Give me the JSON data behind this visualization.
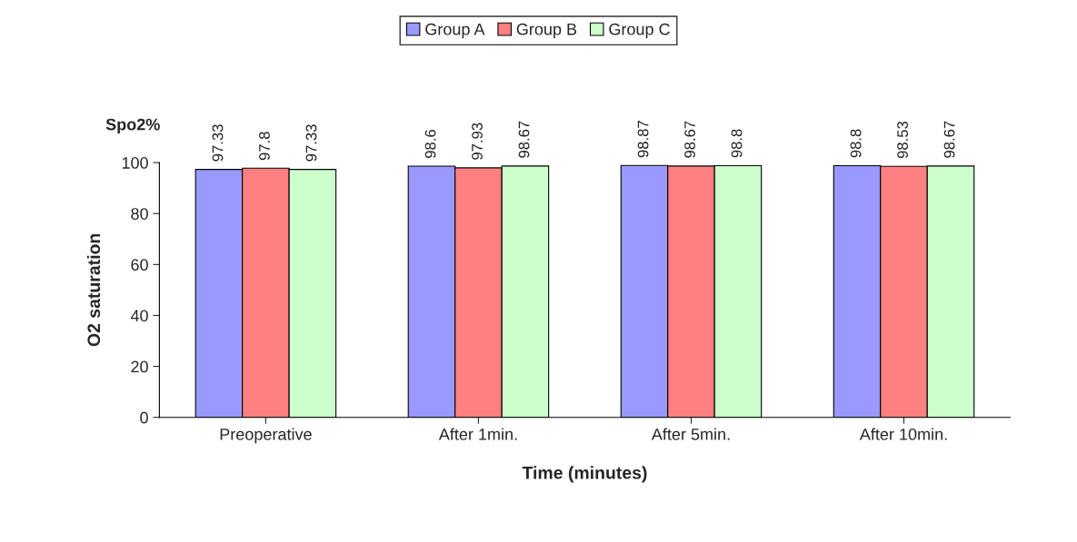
{
  "chart_data": {
    "type": "bar",
    "xlabel": "Time (minutes)",
    "ylabel": "O2 saturation",
    "annotations": [
      "Spo2%"
    ],
    "categories": [
      "Preoperative",
      "After 1min.",
      "After 5min.",
      "After 10min."
    ],
    "series": [
      {
        "name": "Group A",
        "color": "#9999ff",
        "values": [
          97.33,
          98.6,
          98.87,
          98.8
        ]
      },
      {
        "name": "Group B",
        "color": "#ff8080",
        "values": [
          97.8,
          97.93,
          98.67,
          98.53
        ]
      },
      {
        "name": "Group C",
        "color": "#ccffcc",
        "values": [
          97.33,
          98.67,
          98.8,
          98.67
        ]
      }
    ],
    "ylim": [
      0,
      100
    ],
    "yticks": [
      0,
      20,
      40,
      60,
      80,
      100
    ],
    "grid": false,
    "legend": "top",
    "data_labels": true
  }
}
